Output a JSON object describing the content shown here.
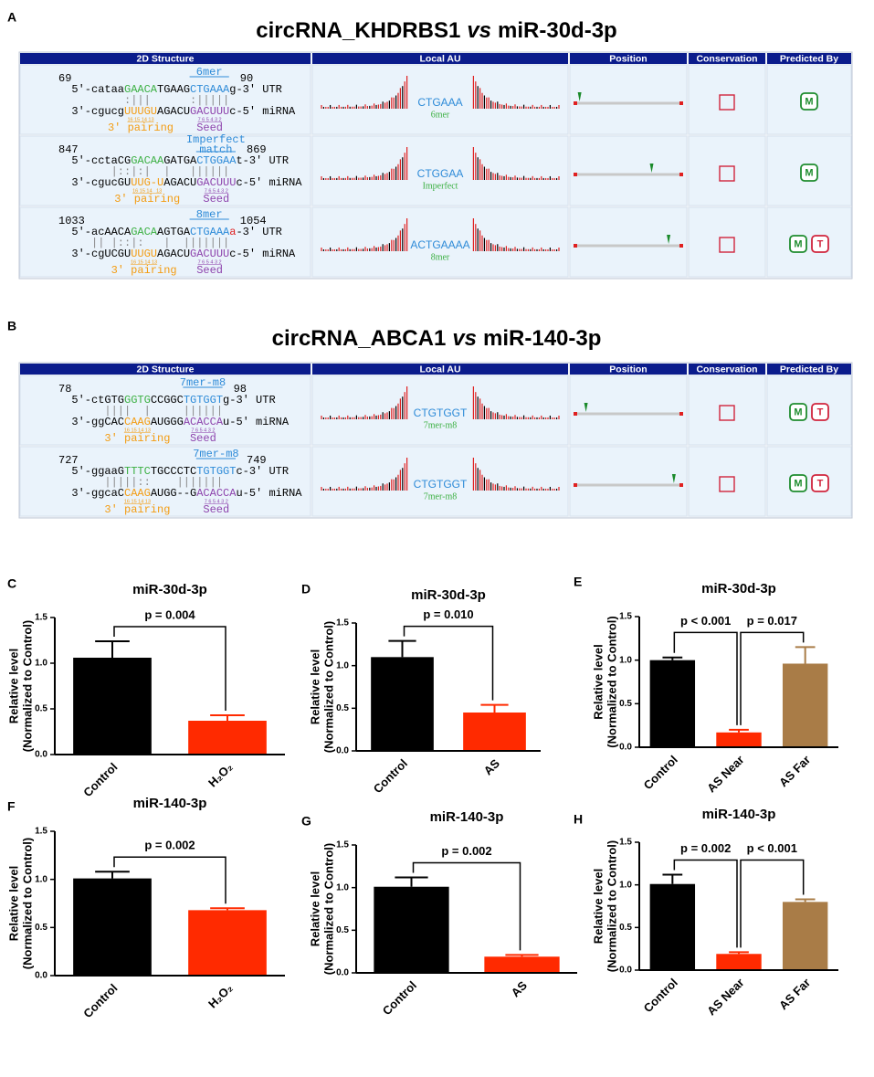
{
  "panels": [
    {
      "label": "A",
      "title": [
        "circRNA_KHDRBS1",
        "vs",
        "miR-30d-3p"
      ],
      "table": {
        "headers": [
          "2D Structure",
          "Local AU",
          "Position",
          "Conservation",
          "Predicted By"
        ],
        "rows": [
          {
            "start": 69,
            "end": 90,
            "site": [
              "6mer"
            ],
            "utr": [
              {
                "text": "5'-cataa",
                "color": "#000000"
              },
              {
                "text": "GAACA",
                "color": "#3cb043"
              },
              {
                "text": "TGAAG",
                "color": "#000000"
              },
              {
                "text": "CTGAAA",
                "color": "#2e8bd8"
              },
              {
                "text": "g-3' UTR",
                "color": "#000000"
              }
            ],
            "pairing": "        :|||      :|||||",
            "mirna": [
              {
                "text": "3'-cgucg",
                "color": "#000000"
              },
              {
                "text": "UUUGU",
                "color": "#f39c12"
              },
              {
                "text": "AGACU",
                "color": "#000000"
              },
              {
                "text": "GACUUU",
                "color": "#8e44ad"
              },
              {
                "text": "c-5' miRNA",
                "color": "#000000"
              }
            ],
            "pairing_numbers": "16 15 14 13",
            "seed_numbers": "7 6 5 4 3 2",
            "pairing_label": "3' pairing",
            "seed_label": "Seed",
            "au_site": "CTGAAA",
            "au_type": "6mer",
            "position": 0.04,
            "predicted_by": [
              "M"
            ]
          },
          {
            "start": 847,
            "end": 869,
            "site": [
              "Imperfect",
              "match"
            ],
            "utr": [
              {
                "text": "5'-cctaCG",
                "color": "#000000"
              },
              {
                "text": "GACAA",
                "color": "#3cb043"
              },
              {
                "text": "GATGA",
                "color": "#000000"
              },
              {
                "text": "CTGGAA",
                "color": "#2e8bd8"
              },
              {
                "text": "t-3' UTR",
                "color": "#000000"
              }
            ],
            "pairing": "      |::|:|  |   ||||||",
            "mirna": [
              {
                "text": "3'-cgucGU",
                "color": "#000000"
              },
              {
                "text": "UUG-U",
                "color": "#f39c12"
              },
              {
                "text": "AGACU",
                "color": "#000000"
              },
              {
                "text": "GACUUU",
                "color": "#8e44ad"
              },
              {
                "text": "c-5' miRNA",
                "color": "#000000"
              }
            ],
            "pairing_numbers": "16 15 14   13",
            "seed_numbers": "7 6 5 4 3 2",
            "pairing_label": "3' pairing",
            "seed_label": "Seed",
            "au_site": "CTGGAA",
            "au_type": "Imperfect",
            "position": 0.72,
            "predicted_by": [
              "M"
            ]
          },
          {
            "start": 1033,
            "end": 1054,
            "site": [
              "8mer"
            ],
            "utr": [
              {
                "text": "5'-acAACA",
                "color": "#000000"
              },
              {
                "text": "GACA",
                "color": "#3cb043"
              },
              {
                "text": "AGTGA",
                "color": "#000000"
              },
              {
                "text": "CTGAAA",
                "color": "#2e8bd8"
              },
              {
                "text": "a",
                "color": "#e02020"
              },
              {
                "text": "-3' UTR",
                "color": "#000000"
              }
            ],
            "pairing": "   || |::|:   |  |||||||",
            "mirna": [
              {
                "text": "3'-cgUCGU",
                "color": "#000000"
              },
              {
                "text": "UUGU",
                "color": "#f39c12"
              },
              {
                "text": "AGACU",
                "color": "#000000"
              },
              {
                "text": "GACUUU",
                "color": "#8e44ad"
              },
              {
                "text": "c-5' miRNA",
                "color": "#000000"
              }
            ],
            "pairing_numbers": "16 15 14 13",
            "seed_numbers": "7 6 5 4 3 2",
            "pairing_label": "3' pairing",
            "seed_label": "Seed",
            "au_site": "ACTGAAAA",
            "au_type": "8mer",
            "position": 0.88,
            "predicted_by": [
              "M",
              "T"
            ]
          }
        ]
      }
    },
    {
      "label": "B",
      "title": [
        "circRNA_ABCA1",
        "vs",
        "miR-140-3p"
      ],
      "table": {
        "headers": [
          "2D Structure",
          "Local AU",
          "Position",
          "Conservation",
          "Predicted By"
        ],
        "rows": [
          {
            "start": 78,
            "end": 98,
            "site": [
              "7mer-m8"
            ],
            "utr": [
              {
                "text": "5'-ctGTG",
                "color": "#000000"
              },
              {
                "text": "GGTG",
                "color": "#3cb043"
              },
              {
                "text": "CCGGC",
                "color": "#000000"
              },
              {
                "text": "TGTGGT",
                "color": "#2e8bd8"
              },
              {
                "text": "g-3' UTR",
                "color": "#000000"
              }
            ],
            "pairing": "     ||||  |     ||||||",
            "mirna": [
              {
                "text": "3'-ggCAC",
                "color": "#000000"
              },
              {
                "text": "CAAG",
                "color": "#f39c12"
              },
              {
                "text": "AUGGG",
                "color": "#000000"
              },
              {
                "text": "ACACCA",
                "color": "#8e44ad"
              },
              {
                "text": "u-5' miRNA",
                "color": "#000000"
              }
            ],
            "pairing_numbers": "16 15 14 13",
            "seed_numbers": "7 6 5 4 3 2",
            "pairing_label": "3' pairing",
            "seed_label": "Seed",
            "au_site": "CTGTGGT",
            "au_type": "7mer-m8",
            "position": 0.1,
            "predicted_by": [
              "M",
              "T"
            ]
          },
          {
            "start": 727,
            "end": 749,
            "site": [
              "7mer-m8"
            ],
            "utr": [
              {
                "text": "5'-ggaaG",
                "color": "#000000"
              },
              {
                "text": "TTTC",
                "color": "#3cb043"
              },
              {
                "text": "TGCCCTC",
                "color": "#000000"
              },
              {
                "text": "TGTGGT",
                "color": "#2e8bd8"
              },
              {
                "text": "c-3' UTR",
                "color": "#000000"
              }
            ],
            "pairing": "     |||||::    |||||||",
            "mirna": [
              {
                "text": "3'-ggcaC",
                "color": "#000000"
              },
              {
                "text": "CAAG",
                "color": "#f39c12"
              },
              {
                "text": "AUGG--G",
                "color": "#000000"
              },
              {
                "text": "ACACCA",
                "color": "#8e44ad"
              },
              {
                "text": "u-5' miRNA",
                "color": "#000000"
              }
            ],
            "pairing_numbers": "16 15 14 13",
            "seed_numbers": "7 6 5 4 3 2",
            "pairing_label": "3' pairing",
            "seed_label": "Seed",
            "au_site": "CTGTGGT",
            "au_type": "7mer-m8",
            "position": 0.93,
            "predicted_by": [
              "M",
              "T"
            ]
          }
        ]
      }
    }
  ],
  "chart_data": [
    {
      "type": "bar",
      "label": "C",
      "title": "miR-30d-3p",
      "y_label": [
        "Relative level",
        "(Normalized to Control)"
      ],
      "categories": [
        "Control",
        "H₂O₂"
      ],
      "values": [
        1.06,
        0.37
      ],
      "errors": [
        0.18,
        0.06
      ],
      "colors": [
        "#000000",
        "#ff2a00"
      ],
      "ylim": [
        0,
        1.5
      ],
      "yticks": [
        {
          "value": 0,
          "label": "0.0"
        },
        {
          "value": 0.5,
          "label": "0.5"
        },
        {
          "value": 1,
          "label": "1.0"
        },
        {
          "value": 1.5,
          "label": "1.5"
        }
      ],
      "annotations": [
        {
          "text": "p = 0.004",
          "between": [
            "Control",
            "H₂O₂"
          ]
        }
      ]
    },
    {
      "type": "bar",
      "label": "D",
      "title": "miR-30d-3p",
      "y_label": [
        "Relative level",
        "(Normalized to Control)"
      ],
      "categories": [
        "Control",
        "AS"
      ],
      "values": [
        1.1,
        0.45
      ],
      "errors": [
        0.19,
        0.09
      ],
      "colors": [
        "#000000",
        "#ff2a00"
      ],
      "ylim": [
        0,
        1.5
      ],
      "yticks": [
        {
          "value": 0,
          "label": "0.0"
        },
        {
          "value": 0.5,
          "label": "0.5"
        },
        {
          "value": 1,
          "label": "1.0"
        },
        {
          "value": 1.5,
          "label": "1.5"
        }
      ],
      "annotations": [
        {
          "text": "p = 0.010",
          "between": [
            "Control",
            "AS"
          ]
        }
      ]
    },
    {
      "type": "bar",
      "label": "E",
      "title": "miR-30d-3p",
      "y_label": [
        "Relative level",
        "(Normalized to Control)"
      ],
      "categories": [
        "Control",
        "AS Near",
        "AS Far"
      ],
      "values": [
        1.0,
        0.17,
        0.96
      ],
      "errors": [
        0.03,
        0.03,
        0.19
      ],
      "colors": [
        "#000000",
        "#ff2a00",
        "#a97c47"
      ],
      "ylim": [
        0,
        1.5
      ],
      "yticks": [
        {
          "value": 0,
          "label": "0.0"
        },
        {
          "value": 0.5,
          "label": "0.5"
        },
        {
          "value": 1,
          "label": "1.0"
        },
        {
          "value": 1.5,
          "label": "1.5"
        }
      ],
      "annotations": [
        {
          "text": "p < 0.001",
          "between": [
            "Control",
            "AS Near"
          ]
        },
        {
          "text": "p = 0.017",
          "between": [
            "AS Near",
            "AS Far"
          ]
        }
      ]
    },
    {
      "type": "bar",
      "label": "F",
      "title": "miR-140-3p",
      "y_label": [
        "Relative level",
        "(Normalized to Control)"
      ],
      "categories": [
        "Control",
        "H₂O₂"
      ],
      "values": [
        1.01,
        0.68
      ],
      "errors": [
        0.07,
        0.02
      ],
      "colors": [
        "#000000",
        "#ff2a00"
      ],
      "ylim": [
        0,
        1.5
      ],
      "yticks": [
        {
          "value": 0,
          "label": "0.0"
        },
        {
          "value": 0.5,
          "label": "0.5"
        },
        {
          "value": 1,
          "label": "1.0"
        },
        {
          "value": 1.5,
          "label": "1.5"
        }
      ],
      "annotations": [
        {
          "text": "p = 0.002",
          "between": [
            "Control",
            "H₂O₂"
          ]
        }
      ]
    },
    {
      "type": "bar",
      "label": "G",
      "title": "miR-140-3p",
      "y_label": [
        "Relative level",
        "(Normalized to Control)"
      ],
      "categories": [
        "Control",
        "AS"
      ],
      "values": [
        1.01,
        0.19
      ],
      "errors": [
        0.11,
        0.02
      ],
      "colors": [
        "#000000",
        "#ff2a00"
      ],
      "ylim": [
        0,
        1.5
      ],
      "yticks": [
        {
          "value": 0,
          "label": "0.0"
        },
        {
          "value": 0.5,
          "label": "0.5"
        },
        {
          "value": 1,
          "label": "1.0"
        },
        {
          "value": 1.5,
          "label": "1.5"
        }
      ],
      "annotations": [
        {
          "text": "p = 0.002",
          "between": [
            "Control",
            "AS"
          ]
        }
      ]
    },
    {
      "type": "bar",
      "label": "H",
      "title": "miR-140-3p",
      "y_label": [
        "Relative level",
        "(Normalized to Control)"
      ],
      "categories": [
        "Control",
        "AS Near",
        "AS Far"
      ],
      "values": [
        1.01,
        0.19,
        0.8
      ],
      "errors": [
        0.11,
        0.02,
        0.03
      ],
      "colors": [
        "#000000",
        "#ff2a00",
        "#a97c47"
      ],
      "ylim": [
        0,
        1.5
      ],
      "yticks": [
        {
          "value": 0,
          "label": "0.0"
        },
        {
          "value": 0.5,
          "label": "0.5"
        },
        {
          "value": 1,
          "label": "1.0"
        },
        {
          "value": 1.5,
          "label": "1.5"
        }
      ],
      "annotations": [
        {
          "text": "p = 0.002",
          "between": [
            "Control",
            "AS Near"
          ]
        },
        {
          "text": "p < 0.001",
          "between": [
            "AS Near",
            "AS Far"
          ]
        }
      ]
    }
  ]
}
